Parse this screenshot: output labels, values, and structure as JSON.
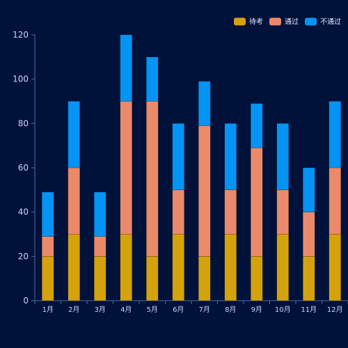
{
  "chart_data": {
    "type": "bar",
    "stacked": true,
    "categories": [
      "1月",
      "2月",
      "3月",
      "4月",
      "5月",
      "6月",
      "7月",
      "8月",
      "9月",
      "10月",
      "11月",
      "12月"
    ],
    "series": [
      {
        "name": "待考",
        "color": "#d4a20d",
        "values": [
          20,
          30,
          20,
          30,
          20,
          30,
          20,
          30,
          20,
          30,
          20,
          30
        ]
      },
      {
        "name": "通过",
        "color": "#ea8a6a",
        "values": [
          9,
          30,
          9,
          60,
          70,
          20,
          59,
          20,
          49,
          20,
          20,
          30
        ]
      },
      {
        "name": "不通过",
        "color": "#0594f3",
        "values": [
          20,
          30,
          20,
          30,
          20,
          30,
          20,
          30,
          20,
          30,
          20,
          30
        ]
      }
    ],
    "ylim": [
      0,
      120
    ],
    "yticks": [
      0,
      20,
      40,
      60,
      80,
      100,
      120
    ],
    "legend_position": "top-right",
    "grid": false,
    "title": "",
    "xlabel": "",
    "ylabel": ""
  }
}
